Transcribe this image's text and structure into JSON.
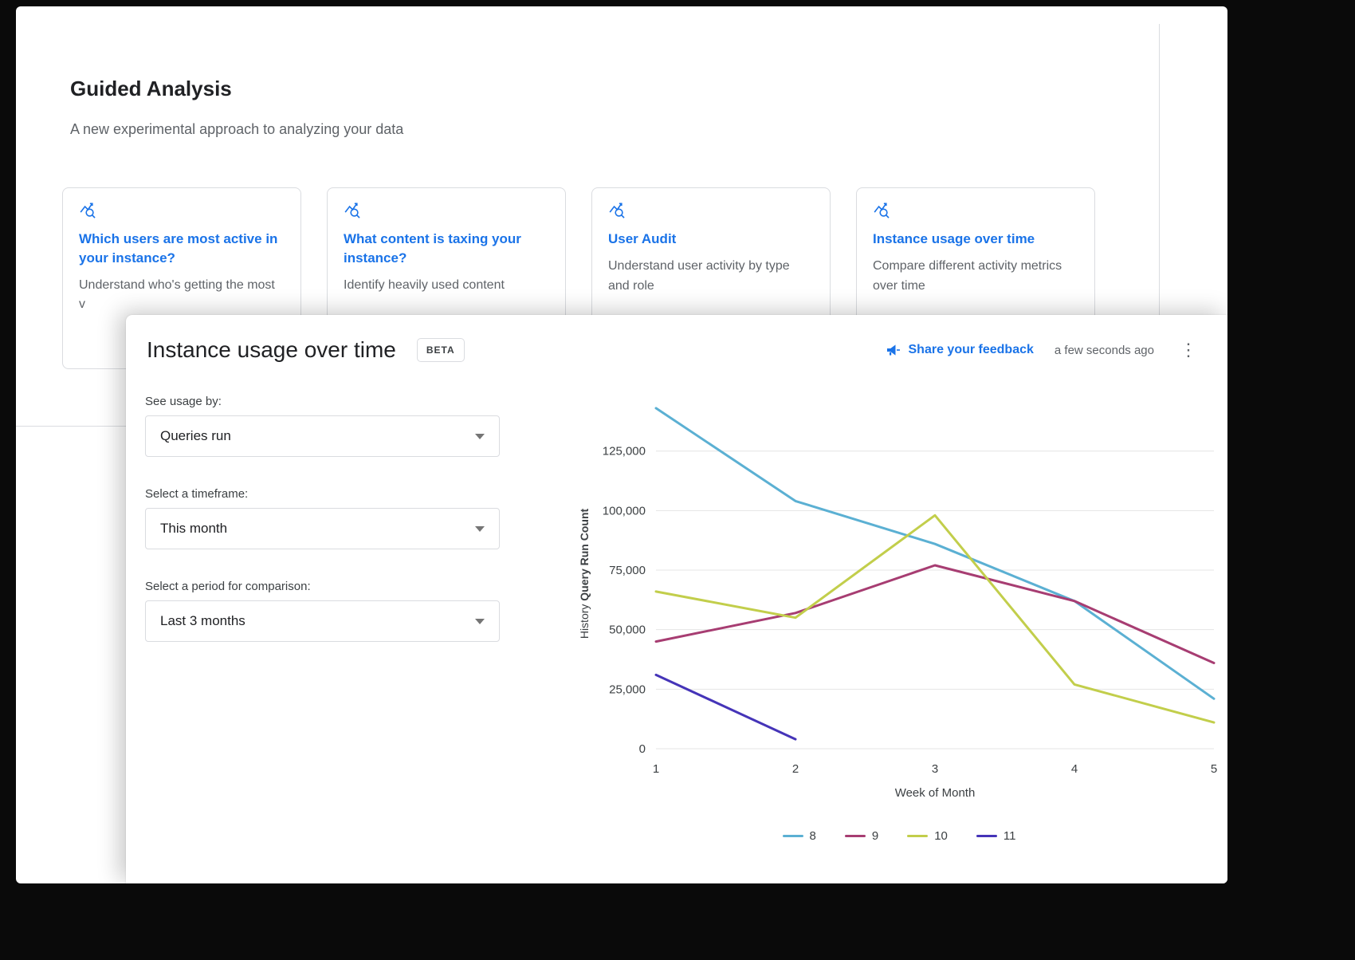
{
  "page": {
    "heading": "Guided Analysis",
    "subheading": "A new experimental approach to analyzing your data",
    "cards": [
      {
        "title": "Which users are most active in your instance?",
        "description": "Understand who's getting the most v"
      },
      {
        "title": "What content is taxing your instance?",
        "description": "Identify heavily used content"
      },
      {
        "title": "User Audit",
        "description": "Understand user activity by type and role"
      },
      {
        "title": "Instance usage over time",
        "description": "Compare different activity metrics over time"
      }
    ],
    "card_icon": "trend-line-magnifier"
  },
  "panel": {
    "title": "Instance usage over time",
    "beta_badge": "BETA",
    "feedback_link": "Share your feedback",
    "feedback_icon": "megaphone",
    "timestamp": "a few seconds ago",
    "menu_icon": "kebab-menu",
    "controls": [
      {
        "label": "See usage by:",
        "value": "Queries run"
      },
      {
        "label": "Select a timeframe:",
        "value": "This month"
      },
      {
        "label": "Select a period for comparison:",
        "value": "Last 3 months"
      }
    ]
  },
  "chart_data": {
    "type": "line",
    "x": [
      1,
      2,
      3,
      4,
      5
    ],
    "xlabel": "Week of Month",
    "ylabel": "History Query Run Count",
    "ylabel_prefix": "History ",
    "ylabel_emphasis": "Query Run Count",
    "ylim": [
      0,
      147000
    ],
    "yticks": [
      0,
      25000,
      50000,
      75000,
      100000,
      125000
    ],
    "grid": true,
    "legend_position": "bottom",
    "series": [
      {
        "name": "8",
        "color": "#5bb0d3",
        "values": [
          143000,
          104000,
          86000,
          62000,
          21000
        ]
      },
      {
        "name": "9",
        "color": "#a73d72",
        "values": [
          45000,
          57000,
          77000,
          62000,
          36000
        ]
      },
      {
        "name": "10",
        "color": "#c2ce4b",
        "values": [
          66000,
          55000,
          98000,
          27000,
          11000
        ]
      },
      {
        "name": "11",
        "color": "#4534b8",
        "values": [
          31000,
          4000,
          null,
          null,
          null
        ]
      }
    ]
  }
}
